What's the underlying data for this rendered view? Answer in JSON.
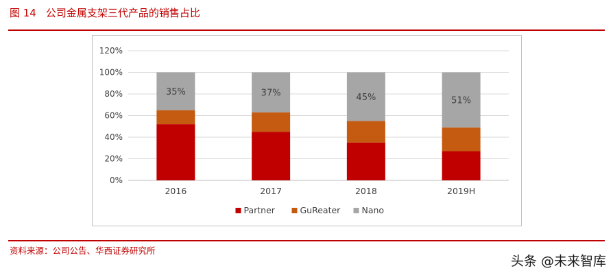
{
  "figure": {
    "number": "图 14",
    "title": "公司金属支架三代产品的销售占比"
  },
  "source": "资料来源：公司公告、华西证券研究所",
  "watermark": "头条 @未来智库",
  "chart_data": {
    "type": "bar",
    "stacked": true,
    "categories": [
      "2016",
      "2017",
      "2018",
      "2019H"
    ],
    "series": [
      {
        "name": "Partner",
        "color": "#c00000",
        "values": [
          52,
          45,
          35,
          27
        ]
      },
      {
        "name": "GuReater",
        "color": "#c55a11",
        "values": [
          13,
          18,
          20,
          22
        ]
      },
      {
        "name": "Nano",
        "color": "#a6a6a6",
        "values": [
          35,
          37,
          45,
          51
        ]
      }
    ],
    "data_labels": {
      "series": "Nano",
      "values": [
        "35%",
        "37%",
        "45%",
        "51%"
      ]
    },
    "yticks": [
      "0%",
      "20%",
      "40%",
      "60%",
      "80%",
      "100%",
      "120%"
    ],
    "ylim": [
      0,
      120
    ],
    "grid": true,
    "legend": "bottom"
  }
}
